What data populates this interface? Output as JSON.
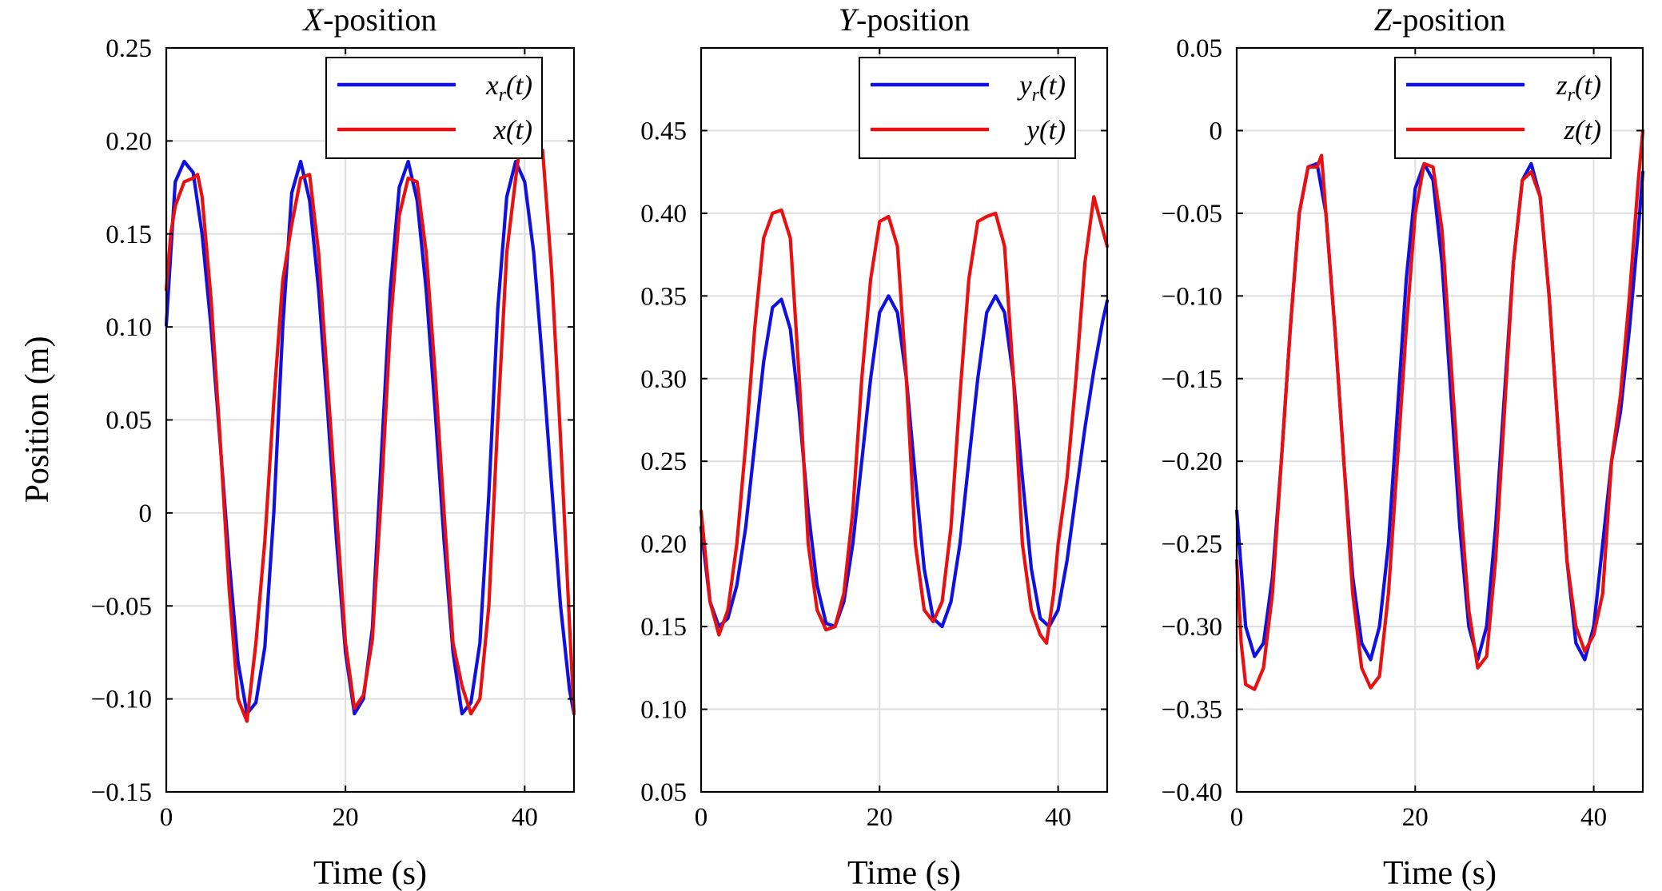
{
  "figure": {
    "xlabel": "Time (s)",
    "ylabel": "Position (m)"
  },
  "chart_data": [
    {
      "type": "line",
      "title_italic": "X",
      "title_rest": "-position",
      "xlim": [
        0,
        45.5
      ],
      "ylim": [
        -0.15,
        0.25
      ],
      "xticks": [
        0,
        20,
        40
      ],
      "xtick_labels": [
        "0",
        "20",
        "40"
      ],
      "yticks": [
        -0.15,
        -0.1,
        -0.05,
        0,
        0.05,
        0.1,
        0.15,
        0.2,
        0.25
      ],
      "ytick_labels": [
        "−0.15",
        "−0.10",
        "−0.05",
        "0",
        "0.05",
        "0.10",
        "0.15",
        "0.20",
        "0.25"
      ],
      "grid": true,
      "legend_position": "top-right",
      "series": [
        {
          "name": "x_r(t)",
          "legend_var": "x",
          "legend_sub": "r",
          "legend_rest": "(t)",
          "color": "#1010e0",
          "x": [
            0,
            1,
            2,
            3,
            4,
            5,
            6,
            7,
            8,
            9,
            10,
            11,
            12,
            13,
            14,
            15,
            16,
            17,
            18,
            19,
            20,
            21,
            22,
            23,
            24,
            25,
            26,
            27,
            28,
            29,
            30,
            31,
            32,
            33,
            34,
            35,
            36,
            37,
            38,
            39,
            40,
            41,
            42,
            43,
            44,
            45,
            45.5
          ],
          "y": [
            0.101,
            0.178,
            0.189,
            0.183,
            0.15,
            0.1,
            0.038,
            -0.025,
            -0.08,
            -0.108,
            -0.102,
            -0.072,
            0.0,
            0.1,
            0.172,
            0.189,
            0.168,
            0.12,
            0.055,
            -0.015,
            -0.075,
            -0.108,
            -0.1,
            -0.062,
            0.03,
            0.12,
            0.175,
            0.189,
            0.168,
            0.12,
            0.055,
            -0.015,
            -0.075,
            -0.108,
            -0.102,
            -0.07,
            0.01,
            0.11,
            0.17,
            0.189,
            0.178,
            0.14,
            0.08,
            0.015,
            -0.05,
            -0.095,
            -0.108
          ]
        },
        {
          "name": "x(t)",
          "legend_var": "x",
          "legend_sub": "",
          "legend_rest": "(t)",
          "color": "#e81010",
          "x": [
            0,
            0.5,
            1,
            2,
            3,
            3.5,
            4,
            5,
            6,
            7,
            8,
            9,
            10,
            11,
            12,
            13,
            14,
            15,
            16,
            17,
            18,
            19,
            20,
            21,
            22,
            23,
            24,
            25,
            26,
            27,
            28,
            29,
            30,
            31,
            32,
            33,
            34,
            35,
            36,
            37,
            38,
            39,
            40,
            41,
            41.5,
            42,
            43,
            44,
            45,
            45.5
          ],
          "y": [
            0.12,
            0.15,
            0.165,
            0.178,
            0.18,
            0.182,
            0.17,
            0.115,
            0.04,
            -0.04,
            -0.1,
            -0.112,
            -0.07,
            -0.015,
            0.06,
            0.125,
            0.155,
            0.18,
            0.182,
            0.14,
            0.07,
            0.0,
            -0.07,
            -0.105,
            -0.098,
            -0.068,
            0.01,
            0.1,
            0.16,
            0.18,
            0.178,
            0.14,
            0.075,
            0.0,
            -0.07,
            -0.093,
            -0.108,
            -0.1,
            -0.05,
            0.05,
            0.14,
            0.18,
            0.217,
            0.205,
            0.195,
            0.195,
            0.13,
            0.04,
            -0.06,
            -0.108
          ]
        }
      ]
    },
    {
      "type": "line",
      "title_italic": "Y",
      "title_rest": "-position",
      "xlim": [
        0,
        45.5
      ],
      "ylim": [
        0.05,
        0.5
      ],
      "xticks": [
        0,
        20,
        40
      ],
      "xtick_labels": [
        "0",
        "20",
        "40"
      ],
      "yticks": [
        0.05,
        0.1,
        0.15,
        0.2,
        0.25,
        0.3,
        0.35,
        0.4,
        0.45
      ],
      "ytick_labels": [
        "0.05",
        "0.10",
        "0.15",
        "0.20",
        "0.25",
        "0.30",
        "0.35",
        "0.40",
        "0.45"
      ],
      "grid": true,
      "legend_position": "top-right",
      "series": [
        {
          "name": "y_r(t)",
          "legend_var": "y",
          "legend_sub": "r",
          "legend_rest": "(t)",
          "color": "#1010e0",
          "x": [
            0,
            1,
            2,
            3,
            4,
            5,
            6,
            7,
            8,
            9,
            10,
            11,
            12,
            13,
            14,
            15,
            16,
            17,
            18,
            19,
            20,
            21,
            22,
            23,
            24,
            25,
            26,
            27,
            28,
            29,
            30,
            31,
            32,
            33,
            34,
            35,
            36,
            37,
            38,
            39,
            40,
            41,
            42,
            43,
            44,
            45,
            45.5
          ],
          "y": [
            0.21,
            0.165,
            0.15,
            0.155,
            0.175,
            0.21,
            0.26,
            0.31,
            0.343,
            0.348,
            0.33,
            0.28,
            0.22,
            0.175,
            0.152,
            0.15,
            0.165,
            0.2,
            0.25,
            0.3,
            0.34,
            0.35,
            0.34,
            0.3,
            0.24,
            0.185,
            0.155,
            0.15,
            0.165,
            0.2,
            0.25,
            0.3,
            0.34,
            0.35,
            0.34,
            0.3,
            0.24,
            0.185,
            0.155,
            0.15,
            0.16,
            0.19,
            0.23,
            0.27,
            0.305,
            0.335,
            0.347
          ]
        },
        {
          "name": "y(t)",
          "legend_var": "y",
          "legend_sub": "",
          "legend_rest": "(t)",
          "color": "#e81010",
          "x": [
            0,
            1,
            2,
            3,
            4,
            5,
            6,
            7,
            8,
            9,
            10,
            11,
            12,
            13,
            14,
            15,
            16,
            17,
            18,
            19,
            20,
            21,
            22,
            23,
            24,
            25,
            26,
            27,
            28,
            29,
            30,
            31,
            32,
            33,
            34,
            35,
            36,
            37,
            38,
            38.7,
            39.5,
            40,
            41,
            42,
            43,
            44,
            45,
            45.5
          ],
          "y": [
            0.22,
            0.165,
            0.145,
            0.16,
            0.2,
            0.26,
            0.33,
            0.385,
            0.4,
            0.402,
            0.385,
            0.3,
            0.2,
            0.16,
            0.148,
            0.15,
            0.17,
            0.22,
            0.3,
            0.36,
            0.395,
            0.398,
            0.38,
            0.3,
            0.2,
            0.16,
            0.153,
            0.165,
            0.21,
            0.29,
            0.36,
            0.395,
            0.398,
            0.4,
            0.38,
            0.3,
            0.2,
            0.16,
            0.145,
            0.14,
            0.17,
            0.2,
            0.24,
            0.3,
            0.37,
            0.41,
            0.39,
            0.38
          ]
        }
      ]
    },
    {
      "type": "line",
      "title_italic": "Z",
      "title_rest": "-position",
      "xlim": [
        0,
        45.5
      ],
      "ylim": [
        -0.4,
        0.05
      ],
      "xticks": [
        0,
        20,
        40
      ],
      "xtick_labels": [
        "0",
        "20",
        "40"
      ],
      "yticks": [
        -0.4,
        -0.35,
        -0.3,
        -0.25,
        -0.2,
        -0.15,
        -0.1,
        -0.05,
        0,
        0.05
      ],
      "ytick_labels": [
        "−0.40",
        "−0.35",
        "−0.30",
        "−0.25",
        "−0.20",
        "−0.15",
        "−0.10",
        "−0.05",
        "0",
        "0.05"
      ],
      "grid": true,
      "legend_position": "top-right",
      "series": [
        {
          "name": "z_r(t)",
          "legend_var": "z",
          "legend_sub": "r",
          "legend_rest": "(t)",
          "color": "#1010e0",
          "x": [
            0,
            1,
            2,
            3,
            4,
            5,
            6,
            7,
            8,
            9,
            10,
            11,
            12,
            13,
            14,
            15,
            16,
            17,
            18,
            19,
            20,
            21,
            22,
            23,
            24,
            25,
            26,
            27,
            28,
            29,
            30,
            31,
            32,
            33,
            34,
            35,
            36,
            37,
            38,
            39,
            40,
            41,
            42,
            43,
            44,
            45,
            45.5
          ],
          "y": [
            -0.23,
            -0.3,
            -0.318,
            -0.31,
            -0.27,
            -0.2,
            -0.12,
            -0.05,
            -0.022,
            -0.02,
            -0.05,
            -0.12,
            -0.2,
            -0.27,
            -0.31,
            -0.32,
            -0.3,
            -0.25,
            -0.17,
            -0.09,
            -0.035,
            -0.02,
            -0.03,
            -0.08,
            -0.16,
            -0.24,
            -0.3,
            -0.32,
            -0.3,
            -0.24,
            -0.16,
            -0.08,
            -0.03,
            -0.02,
            -0.04,
            -0.1,
            -0.18,
            -0.26,
            -0.31,
            -0.32,
            -0.3,
            -0.25,
            -0.2,
            -0.17,
            -0.12,
            -0.06,
            -0.025
          ]
        },
        {
          "name": "z(t)",
          "legend_var": "z",
          "legend_sub": "",
          "legend_rest": "(t)",
          "color": "#e81010",
          "x": [
            0,
            0.5,
            1,
            2,
            3,
            4,
            5,
            6,
            7,
            8,
            9,
            9.5,
            10,
            11,
            12,
            13,
            14,
            15,
            16,
            17,
            18,
            19,
            20,
            21,
            22,
            23,
            24,
            25,
            26,
            27,
            28,
            29,
            30,
            31,
            32,
            33,
            34,
            35,
            36,
            37,
            38,
            39,
            40,
            41,
            42,
            43,
            44,
            45,
            45.5
          ],
          "y": [
            -0.26,
            -0.31,
            -0.335,
            -0.338,
            -0.325,
            -0.28,
            -0.2,
            -0.12,
            -0.05,
            -0.022,
            -0.022,
            -0.015,
            -0.05,
            -0.12,
            -0.2,
            -0.28,
            -0.325,
            -0.337,
            -0.33,
            -0.28,
            -0.2,
            -0.12,
            -0.05,
            -0.02,
            -0.022,
            -0.06,
            -0.14,
            -0.22,
            -0.29,
            -0.325,
            -0.318,
            -0.26,
            -0.17,
            -0.08,
            -0.03,
            -0.025,
            -0.04,
            -0.1,
            -0.18,
            -0.26,
            -0.3,
            -0.315,
            -0.305,
            -0.28,
            -0.2,
            -0.16,
            -0.1,
            -0.03,
            0.0
          ]
        }
      ]
    }
  ]
}
